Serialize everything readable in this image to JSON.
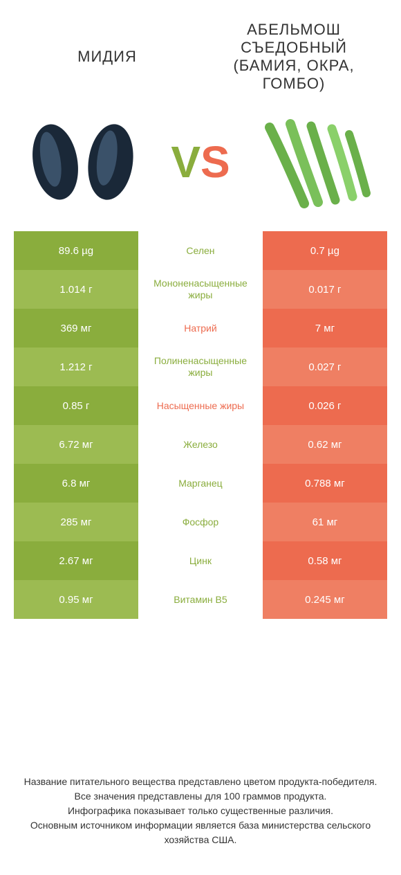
{
  "colors": {
    "left_a": "#8aad3d",
    "left_b": "#9cbb52",
    "right_a": "#ed6b4f",
    "right_b": "#ef7f63",
    "mid_green": "#8aad3d",
    "mid_orange": "#ed6b4f",
    "mussel_shell": "#1a2838",
    "mussel_highlight": "#5a7a9a",
    "okra_green": "#6ab04a",
    "okra_dark": "#4a8a2a"
  },
  "header": {
    "left": "МИДИЯ",
    "right": "АБЕЛЬМОШ СЪЕДОБНЫЙ (БАМИЯ, ОКРА, ГОМБО)"
  },
  "vs": {
    "v": "V",
    "s": "S"
  },
  "rows": [
    {
      "left": "89.6 µg",
      "mid": "Селен",
      "right": "0.7 µg",
      "winner": "left"
    },
    {
      "left": "1.014 г",
      "mid": "Мононенасыщенные жиры",
      "right": "0.017 г",
      "winner": "left"
    },
    {
      "left": "369 мг",
      "mid": "Натрий",
      "right": "7 мг",
      "winner": "right"
    },
    {
      "left": "1.212 г",
      "mid": "Полиненасыщенные жиры",
      "right": "0.027 г",
      "winner": "left"
    },
    {
      "left": "0.85 г",
      "mid": "Насыщенные жиры",
      "right": "0.026 г",
      "winner": "right"
    },
    {
      "left": "6.72 мг",
      "mid": "Железо",
      "right": "0.62 мг",
      "winner": "left"
    },
    {
      "left": "6.8 мг",
      "mid": "Марганец",
      "right": "0.788 мг",
      "winner": "left"
    },
    {
      "left": "285 мг",
      "mid": "Фосфор",
      "right": "61 мг",
      "winner": "left"
    },
    {
      "left": "2.67 мг",
      "mid": "Цинк",
      "right": "0.58 мг",
      "winner": "left"
    },
    {
      "left": "0.95 мг",
      "mid": "Витамин B5",
      "right": "0.245 мг",
      "winner": "left"
    }
  ],
  "footer": {
    "l1": "Название питательного вещества представлено цветом продукта-победителя.",
    "l2": "Все значения представлены для 100 граммов продукта.",
    "l3": "Инфографика показывает только существенные различия.",
    "l4": "Основным источником информации является база министерства сельского хозяйства США."
  }
}
